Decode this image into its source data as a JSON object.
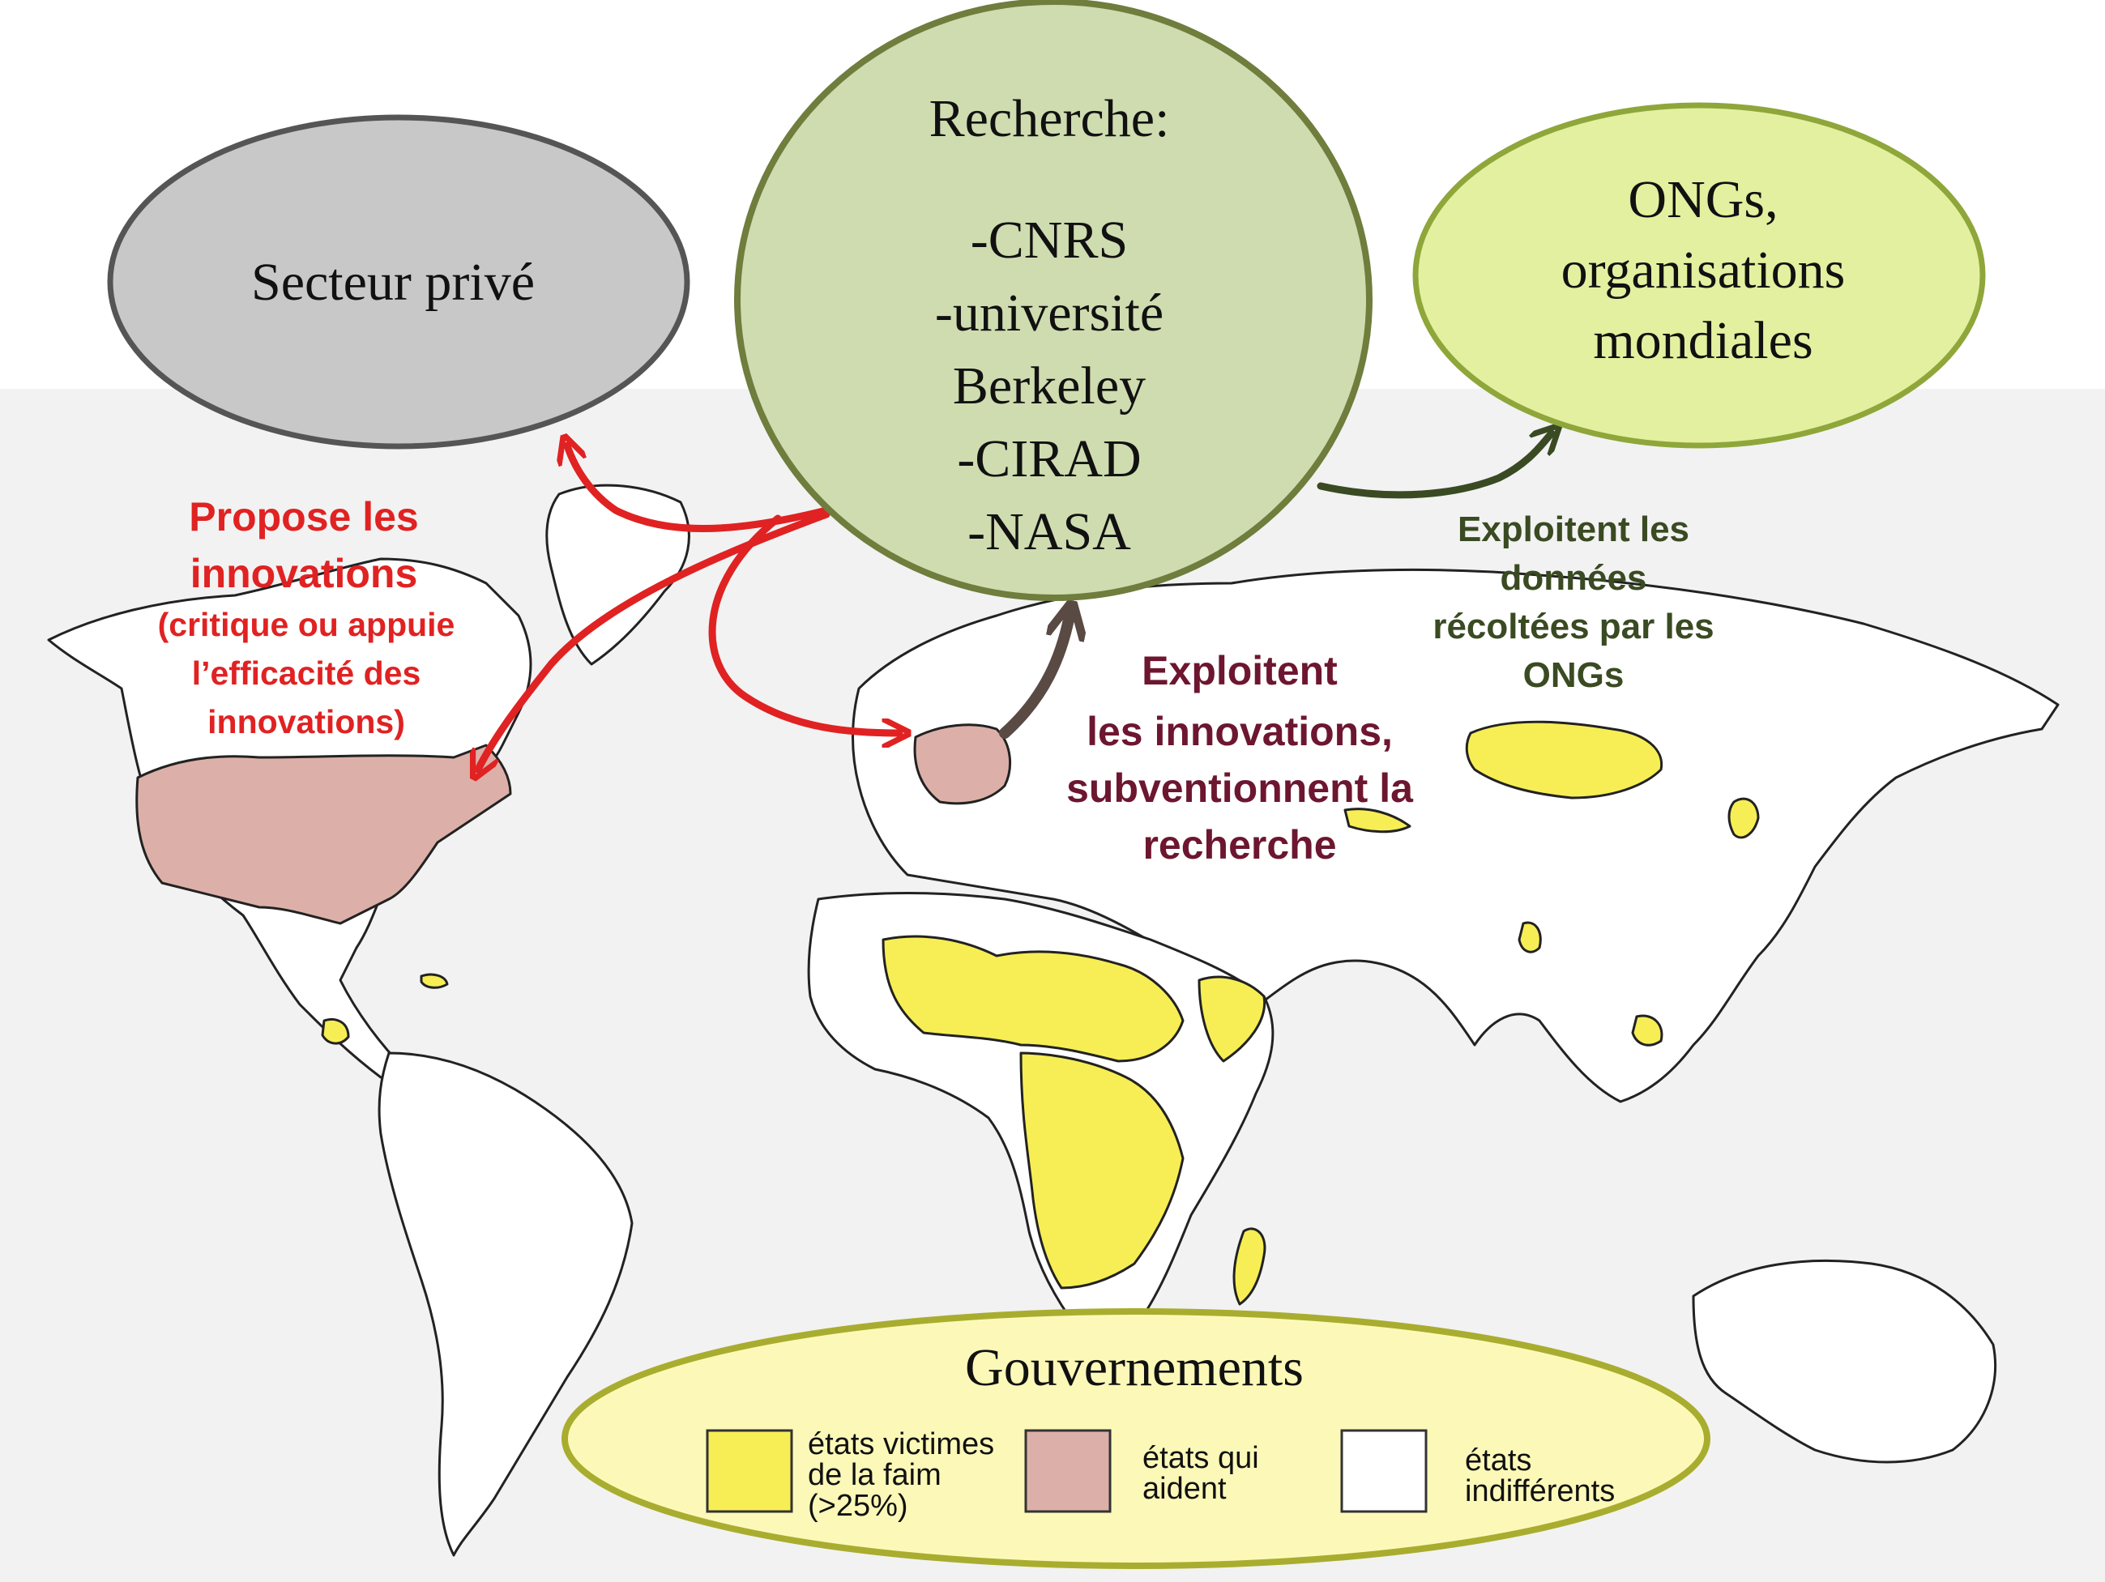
{
  "colors": {
    "hunger": "#f7ee55",
    "aid": "#dcb0a8",
    "indifferent": "#ffffff",
    "border": "#222222",
    "map_bg": "#f2f2f2",
    "red_arrow": "#e02222",
    "brown_arrow": "#5a4a44",
    "olive_arrow": "#3a4a22",
    "maroon_text": "#6d1630",
    "private_fill": "#c8c8c8",
    "research_fill": "#cfdcb0",
    "research_stroke": "#6f7d3d",
    "ngo_fill": "#e3f0a0",
    "ngo_stroke": "#8fa63a",
    "gov_fill": "#fcf9b8",
    "gov_stroke": "#a9ad2f"
  },
  "nodes": {
    "private": {
      "lines": [
        "Secteur privé"
      ]
    },
    "research": {
      "lines": [
        "Recherche:",
        "-CNRS",
        "-université",
        "Berkeley",
        "-CIRAD",
        "-NASA"
      ]
    },
    "ngo": {
      "lines": [
        "ONGs,",
        "organisations",
        "mondiales"
      ]
    },
    "government": {
      "title": "Gouvernements"
    }
  },
  "edge_labels": {
    "propose": [
      "Propose les",
      "innovations",
      "(critique ou appuie",
      "l’efficacité des",
      "innovations)"
    ],
    "subsidize": [
      "Exploitent",
      "les innovations,",
      "subventionnent la",
      "recherche"
    ],
    "ngo_data": [
      "Exploitent les",
      "données",
      "récoltées par les",
      "ONGs"
    ]
  },
  "legend": [
    {
      "key": "hunger",
      "lines": [
        "états victimes",
        "de la faim",
        "(>25%)"
      ]
    },
    {
      "key": "aid",
      "lines": [
        "états qui",
        "aident"
      ]
    },
    {
      "key": "indifferent",
      "lines": [
        "états",
        "indifférents"
      ]
    }
  ]
}
